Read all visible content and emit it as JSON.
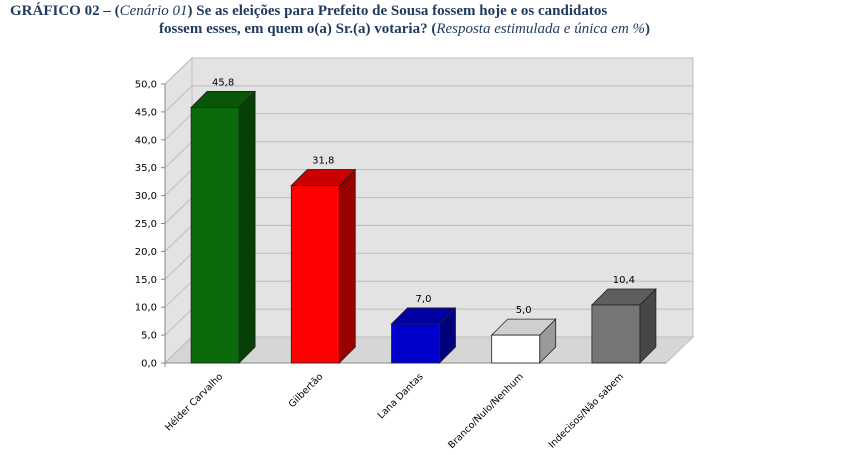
{
  "title": {
    "prefix": "GRÁFICO 02 – (",
    "scenario": "Cenário 01",
    "part1": ") Se as eleições para Prefeito de Sousa fossem hoje e os candidatos",
    "part2": "fossem esses, em quem o(a) Sr.(a) votaria? (",
    "note": "Resposta estimulada e única em %",
    "suffix": ")"
  },
  "chart_data": {
    "type": "bar",
    "categories": [
      "Hélder Carvalho",
      "Gilbertão",
      "Lana Dantas",
      "Branco/Nulo/Nenhum",
      "Indecisos/Não sabem"
    ],
    "values": [
      45.8,
      31.8,
      7.0,
      5.0,
      10.4
    ],
    "value_labels": [
      "45,8",
      "31,8",
      "7,0",
      "5,0",
      "10,4"
    ],
    "bar_colors": [
      "#0b6b0b",
      "#ff0000",
      "#0000cc",
      "#ffffff",
      "#767676"
    ],
    "ylim": [
      0,
      50
    ],
    "yticks": [
      "0,0",
      "5,0",
      "10,0",
      "15,0",
      "20,0",
      "25,0",
      "30,0",
      "35,0",
      "40,0",
      "45,0",
      "50,0"
    ],
    "grid": true,
    "legend": "none",
    "xlabel": "",
    "ylabel": ""
  }
}
